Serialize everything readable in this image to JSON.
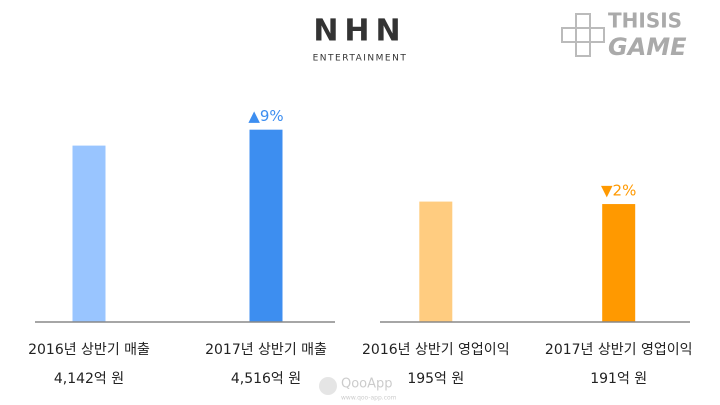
{
  "header": {
    "logo": "NHN",
    "tagline": "ENTERTAINMENT",
    "site": [
      "THISIS",
      "GAME"
    ]
  },
  "watermark": {
    "name": "QooApp",
    "url": "www.qoo-app.com"
  },
  "chart_data": [
    {
      "type": "bar",
      "categories": [
        "2016년 상반기 매출",
        "2017년 상반기 매출"
      ],
      "values": [
        4142,
        4516
      ],
      "value_labels": [
        "4,142억 원",
        "4,516억 원"
      ],
      "colors": [
        "#99c5ff",
        "#3d8ef0"
      ],
      "annotation": "▲9%",
      "annotation_color": "#3d8ef0",
      "ylim": [
        0,
        5800
      ]
    },
    {
      "type": "bar",
      "categories": [
        "2016년 상반기 영업이익",
        "2017년 상반기 영업이익"
      ],
      "values": [
        195,
        191
      ],
      "value_labels": [
        "195억 원",
        "191억 원"
      ],
      "colors": [
        "#ffcc80",
        "#ff9900"
      ],
      "annotation": "▼2%",
      "annotation_color": "#ff9900",
      "ylim": [
        0,
        400
      ]
    }
  ]
}
